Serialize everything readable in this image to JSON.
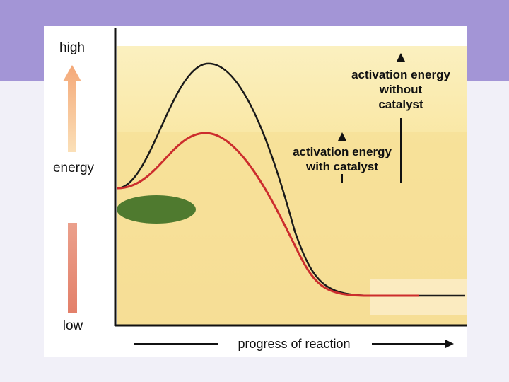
{
  "diagram": {
    "title": "",
    "y_axis": {
      "top_label": "high",
      "middle_label": "energy",
      "bottom_label": "low"
    },
    "x_axis": {
      "label": "progress of reaction"
    },
    "annotations": {
      "uncatalyzed": [
        "activation energy",
        "without",
        "catalyst"
      ],
      "catalyzed": [
        "activation energy",
        "with catalyst"
      ]
    },
    "curves": [
      {
        "name": "without catalyst",
        "color": "#1a1a1a"
      },
      {
        "name": "with catalyst",
        "color": "#cc2d2d"
      }
    ],
    "colors": {
      "background_band": "#a395d6",
      "plot_fill": "#f8e7a6",
      "enzyme_blob": "#4f7a2f",
      "high_arrow": "#f6b98f",
      "low_bar": "#e9947f"
    }
  }
}
